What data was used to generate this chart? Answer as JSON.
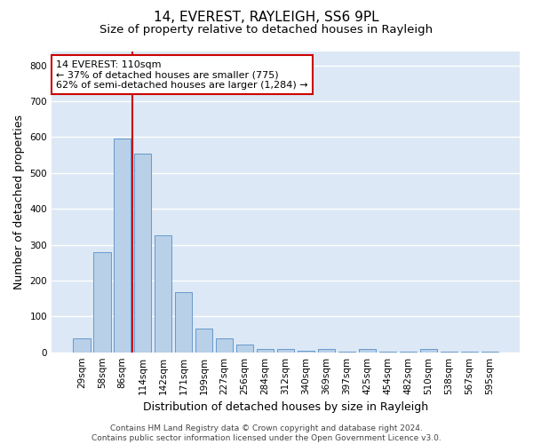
{
  "title": "14, EVEREST, RAYLEIGH, SS6 9PL",
  "subtitle": "Size of property relative to detached houses in Rayleigh",
  "xlabel": "Distribution of detached houses by size in Rayleigh",
  "ylabel": "Number of detached properties",
  "categories": [
    "29sqm",
    "58sqm",
    "86sqm",
    "114sqm",
    "142sqm",
    "171sqm",
    "199sqm",
    "227sqm",
    "256sqm",
    "284sqm",
    "312sqm",
    "340sqm",
    "369sqm",
    "397sqm",
    "425sqm",
    "454sqm",
    "482sqm",
    "510sqm",
    "538sqm",
    "567sqm",
    "595sqm"
  ],
  "values": [
    38,
    280,
    595,
    553,
    325,
    168,
    65,
    38,
    22,
    10,
    8,
    5,
    10,
    2,
    9,
    2,
    2,
    10,
    2,
    2,
    2
  ],
  "bar_color": "#b8d0e8",
  "bar_edge_color": "#6699cc",
  "bg_color": "#dce8f5",
  "grid_color": "#ffffff",
  "vline_color": "#cc0000",
  "vline_pos": 2.5,
  "annotation_text": "14 EVEREST: 110sqm\n← 37% of detached houses are smaller (775)\n62% of semi-detached houses are larger (1,284) →",
  "annotation_box_color": "#ffffff",
  "annotation_box_edge": "#cc0000",
  "ylim": [
    0,
    840
  ],
  "yticks": [
    0,
    100,
    200,
    300,
    400,
    500,
    600,
    700,
    800
  ],
  "footer": "Contains HM Land Registry data © Crown copyright and database right 2024.\nContains public sector information licensed under the Open Government Licence v3.0.",
  "title_fontsize": 11,
  "subtitle_fontsize": 9.5,
  "axis_label_fontsize": 9,
  "tick_fontsize": 7.5,
  "annotation_fontsize": 8,
  "footer_fontsize": 6.5
}
